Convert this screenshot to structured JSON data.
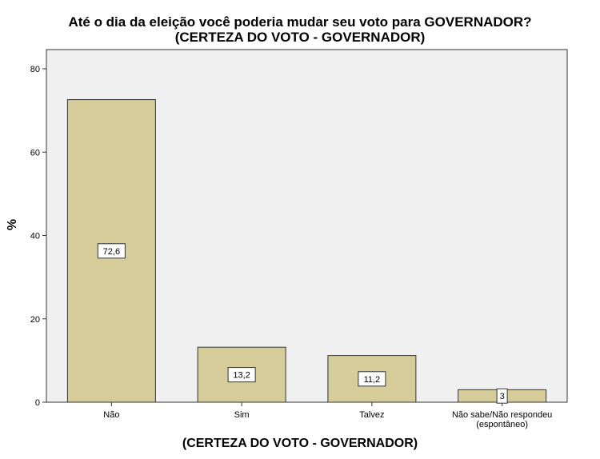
{
  "chart_data": {
    "type": "bar",
    "title_line1": "Até o dia da eleição você poderia mudar seu voto para GOVERNADOR?",
    "title_line2": "(CERTEZA DO VOTO - GOVERNADOR)",
    "xlabel": "(CERTEZA DO VOTO - GOVERNADOR)",
    "ylabel": "%",
    "categories": [
      "Não",
      "Sim",
      "Talvez",
      "Não sabe/Não respondeu (espontâneo)"
    ],
    "category_lines": [
      [
        "Não"
      ],
      [
        "Sim"
      ],
      [
        "Talvez"
      ],
      [
        "Não sabe/Não respondeu",
        "(espontâneo)"
      ]
    ],
    "values": [
      72.6,
      13.2,
      11.2,
      3
    ],
    "value_labels": [
      "72,6",
      "13,2",
      "11,2",
      "3"
    ],
    "yticks": [
      0,
      20,
      40,
      60,
      80
    ],
    "ylim": [
      0,
      80
    ],
    "grid": false,
    "colors": {
      "bar_fill": "#d5cc9a",
      "bar_stroke": "#333333",
      "plot_bg": "#f0f0f0"
    }
  }
}
